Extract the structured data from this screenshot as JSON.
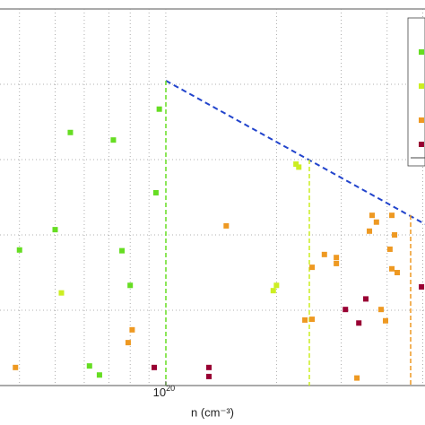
{
  "chart_data": {
    "type": "scatter",
    "x_label": "n (cm⁻³)",
    "xlog": true,
    "xlim": [
      3.54e+19,
      5.07e+20
    ],
    "ylim": [
      0,
      5
    ],
    "xticks": [
      {
        "value": 1e+20,
        "label": "10",
        "label_exponent": "20"
      }
    ],
    "xgrid": [
      4e+19,
      5e+19,
      6e+19,
      7e+19,
      8e+19,
      9e+19,
      1e+20,
      2e+20,
      3e+20,
      4e+20,
      5e+20
    ],
    "ygrid": [
      1,
      2,
      3,
      4
    ],
    "series": [
      {
        "color": "#66dd22",
        "x": [
          9.6e+19,
          5.5e+19,
          7.2e+19,
          9.4e+19,
          5e+19,
          4e+19,
          7.6e+19,
          8e+19,
          6.2e+19,
          6.6e+19
        ],
        "values": [
          3.67,
          3.36,
          3.26,
          2.56,
          2.07,
          1.8,
          1.79,
          1.33,
          0.26,
          0.14
        ]
      },
      {
        "color": "#ccee22",
        "x": [
          2.26e+20,
          2.3e+20,
          5.2e+19,
          2e+20,
          1.96e+20
        ],
        "values": [
          2.94,
          2.9,
          1.23,
          1.33,
          1.26
        ]
      },
      {
        "color": "#ee9922",
        "x": [
          1.46e+20,
          3.64e+20,
          3.74e+20,
          4.12e+20,
          3.58e+20,
          4.19e+20,
          2.7e+20,
          2.91e+20,
          2.5e+20,
          2.91e+20,
          4.07e+20,
          4.12e+20,
          4.26e+20,
          2.5e+20,
          2.39e+20,
          3.96e+20,
          8.1e+19,
          7.9e+19,
          3.9e+19,
          3.31e+20,
          3.85e+20
        ],
        "values": [
          2.12,
          2.26,
          2.17,
          2.26,
          2.05,
          2.0,
          1.74,
          1.7,
          1.57,
          1.62,
          1.81,
          1.55,
          1.5,
          0.88,
          0.87,
          0.86,
          0.74,
          0.57,
          0.24,
          0.1,
          1.01
        ]
      },
      {
        "color": "#990033",
        "x": [
          9.3e+19,
          1.31e+20,
          1.31e+20,
          3.08e+20,
          3.35e+20,
          3.5e+20,
          4.96e+20
        ],
        "values": [
          0.24,
          0.24,
          0.12,
          1.01,
          0.83,
          1.15,
          1.31
        ]
      }
    ]
  }
}
